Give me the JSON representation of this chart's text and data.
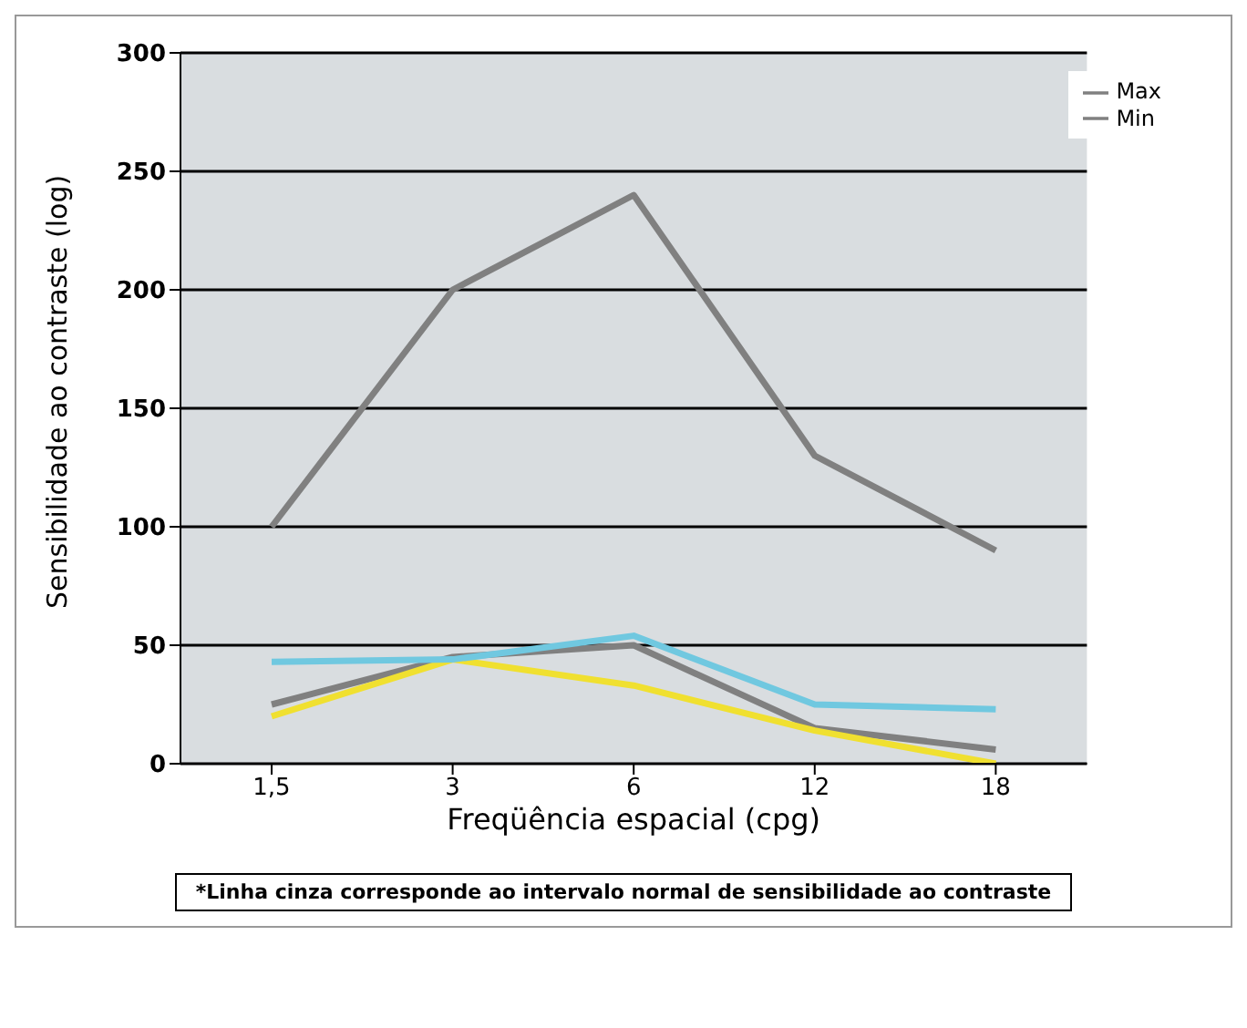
{
  "chart_data": {
    "type": "line",
    "xlabel": "Freqüência espacial (cpg)",
    "ylabel": "Sensibilidade ao contraste (log)",
    "categories": [
      "1,5",
      "3",
      "6",
      "12",
      "18"
    ],
    "series": [
      {
        "name": "Max",
        "color": "#808080",
        "values": [
          100,
          200,
          240,
          130,
          90
        ]
      },
      {
        "name": "Min",
        "color": "#808080",
        "values": [
          25,
          45,
          50,
          15,
          6
        ]
      },
      {
        "color": "#f0e030",
        "values": [
          20,
          44,
          33,
          14,
          0
        ]
      },
      {
        "color": "#70c8e0",
        "values": [
          43,
          44,
          54,
          25,
          23
        ]
      }
    ],
    "ylim": [
      0,
      300
    ],
    "yticks": [
      0,
      50,
      100,
      150,
      200,
      250,
      300
    ],
    "grid": "y",
    "legend": "top right",
    "marker": "none",
    "line_style": "solid",
    "annotations": [
      "*Linha cinza corresponde ao intervalo normal de sensibilidade ao contraste"
    ]
  }
}
